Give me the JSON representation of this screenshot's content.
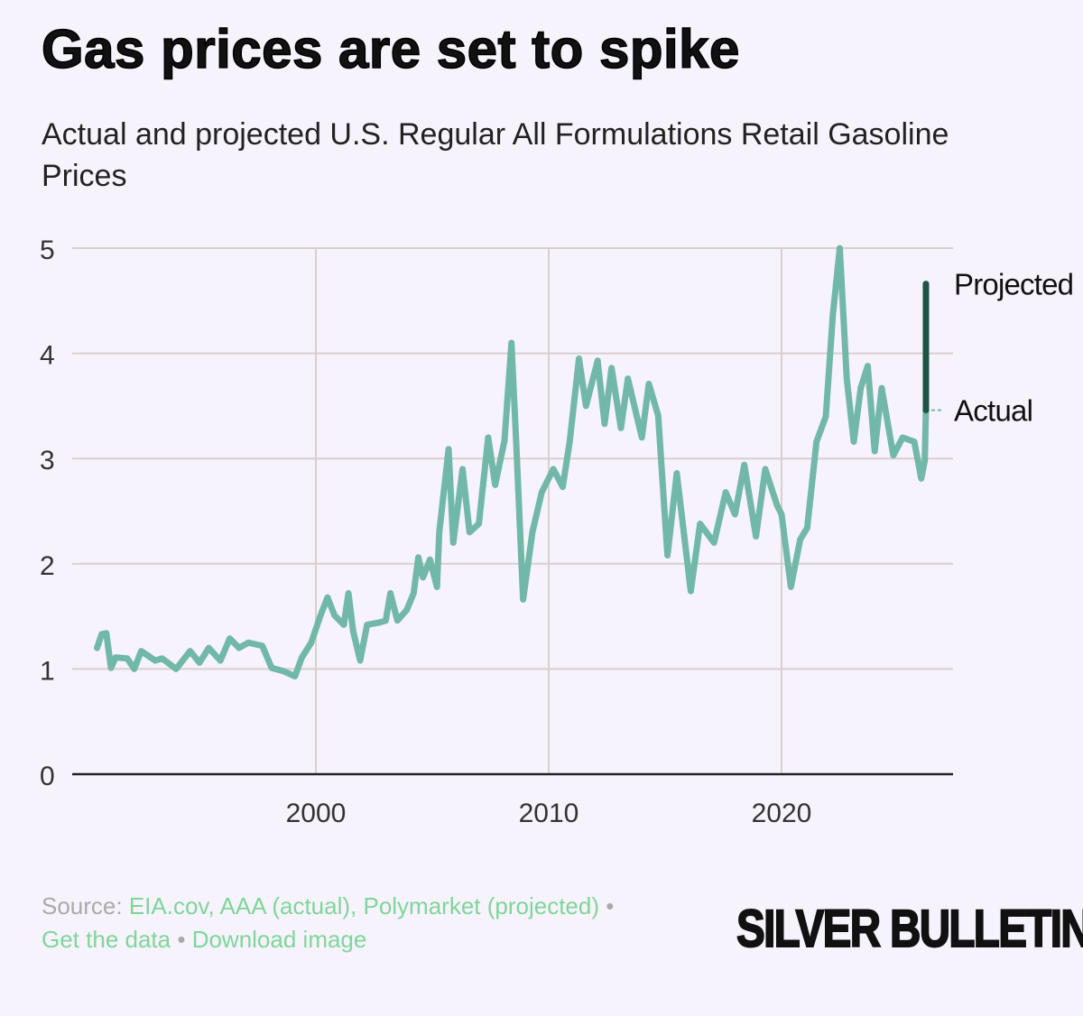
{
  "title": "Gas prices are set to spike",
  "subtitle": "Actual and projected U.S. Regular All Formulations Retail Gasoline Prices",
  "footer": {
    "source_label": "Source:",
    "sources": "EIA.cov, AAA (actual), Polymarket (projected)",
    "separator": "•",
    "get_data": "Get the data",
    "download": "Download image"
  },
  "logo": "SILVER BULLETIN",
  "colors": {
    "actual": "#72b8a8",
    "projected": "#1e5446",
    "grid": "#d9cfcf",
    "axis": "#222"
  },
  "chart_data": {
    "type": "line",
    "title": "Gas prices are set to spike",
    "xlabel": "",
    "ylabel": "",
    "xlim": [
      1989.0,
      2027.0
    ],
    "ylim": [
      0,
      5
    ],
    "yticks": [
      "0",
      "1",
      "2",
      "3",
      "4",
      "5"
    ],
    "xticks": [
      "2000",
      "2010",
      "2020"
    ],
    "grid": true,
    "series": [
      {
        "name": "Actual",
        "label": "Actual",
        "points": [
          [
            1990.6,
            1.2
          ],
          [
            1990.8,
            1.33
          ],
          [
            1991.0,
            1.34
          ],
          [
            1991.2,
            1.01
          ],
          [
            1991.4,
            1.11
          ],
          [
            1991.9,
            1.1
          ],
          [
            1992.2,
            1.0
          ],
          [
            1992.5,
            1.17
          ],
          [
            1993.1,
            1.08
          ],
          [
            1993.4,
            1.1
          ],
          [
            1994.0,
            1.0
          ],
          [
            1994.6,
            1.17
          ],
          [
            1995.0,
            1.06
          ],
          [
            1995.4,
            1.2
          ],
          [
            1995.9,
            1.08
          ],
          [
            1996.3,
            1.29
          ],
          [
            1996.7,
            1.2
          ],
          [
            1997.1,
            1.25
          ],
          [
            1997.7,
            1.22
          ],
          [
            1998.1,
            1.01
          ],
          [
            1998.6,
            0.98
          ],
          [
            1999.1,
            0.93
          ],
          [
            1999.4,
            1.11
          ],
          [
            1999.8,
            1.25
          ],
          [
            2000.2,
            1.51
          ],
          [
            2000.5,
            1.68
          ],
          [
            2000.8,
            1.51
          ],
          [
            2001.2,
            1.42
          ],
          [
            2001.4,
            1.72
          ],
          [
            2001.6,
            1.36
          ],
          [
            2001.9,
            1.08
          ],
          [
            2002.2,
            1.42
          ],
          [
            2002.7,
            1.44
          ],
          [
            2003.0,
            1.46
          ],
          [
            2003.2,
            1.72
          ],
          [
            2003.5,
            1.46
          ],
          [
            2003.9,
            1.56
          ],
          [
            2004.2,
            1.72
          ],
          [
            2004.4,
            2.06
          ],
          [
            2004.6,
            1.87
          ],
          [
            2004.9,
            2.04
          ],
          [
            2005.2,
            1.78
          ],
          [
            2005.3,
            2.3
          ],
          [
            2005.7,
            3.09
          ],
          [
            2005.9,
            2.2
          ],
          [
            2006.3,
            2.9
          ],
          [
            2006.6,
            2.3
          ],
          [
            2007.0,
            2.38
          ],
          [
            2007.4,
            3.2
          ],
          [
            2007.7,
            2.75
          ],
          [
            2008.1,
            3.17
          ],
          [
            2008.4,
            4.1
          ],
          [
            2008.6,
            3.17
          ],
          [
            2008.9,
            1.66
          ],
          [
            2009.3,
            2.3
          ],
          [
            2009.7,
            2.68
          ],
          [
            2010.2,
            2.9
          ],
          [
            2010.6,
            2.73
          ],
          [
            2010.9,
            3.16
          ],
          [
            2011.3,
            3.95
          ],
          [
            2011.6,
            3.5
          ],
          [
            2012.1,
            3.93
          ],
          [
            2012.4,
            3.33
          ],
          [
            2012.7,
            3.86
          ],
          [
            2013.1,
            3.29
          ],
          [
            2013.4,
            3.76
          ],
          [
            2014.0,
            3.2
          ],
          [
            2014.3,
            3.71
          ],
          [
            2014.7,
            3.41
          ],
          [
            2015.1,
            2.08
          ],
          [
            2015.5,
            2.86
          ],
          [
            2016.1,
            1.74
          ],
          [
            2016.5,
            2.38
          ],
          [
            2017.1,
            2.2
          ],
          [
            2017.6,
            2.68
          ],
          [
            2018.0,
            2.47
          ],
          [
            2018.4,
            2.94
          ],
          [
            2018.9,
            2.26
          ],
          [
            2019.3,
            2.9
          ],
          [
            2019.8,
            2.56
          ],
          [
            2020.0,
            2.47
          ],
          [
            2020.4,
            1.78
          ],
          [
            2020.8,
            2.23
          ],
          [
            2021.1,
            2.34
          ],
          [
            2021.5,
            3.16
          ],
          [
            2021.9,
            3.4
          ],
          [
            2022.2,
            4.36
          ],
          [
            2022.5,
            5.0
          ],
          [
            2022.8,
            3.76
          ],
          [
            2023.1,
            3.16
          ],
          [
            2023.4,
            3.67
          ],
          [
            2023.7,
            3.88
          ],
          [
            2024.0,
            3.07
          ],
          [
            2024.3,
            3.67
          ],
          [
            2024.8,
            3.03
          ],
          [
            2025.2,
            3.2
          ],
          [
            2025.7,
            3.16
          ],
          [
            2026.0,
            2.81
          ],
          [
            2026.15,
            2.98
          ],
          [
            2026.2,
            3.46
          ]
        ]
      },
      {
        "name": "Projected",
        "label": "Projected",
        "points": [
          [
            2026.2,
            3.46
          ],
          [
            2026.2,
            4.66
          ]
        ]
      }
    ]
  }
}
